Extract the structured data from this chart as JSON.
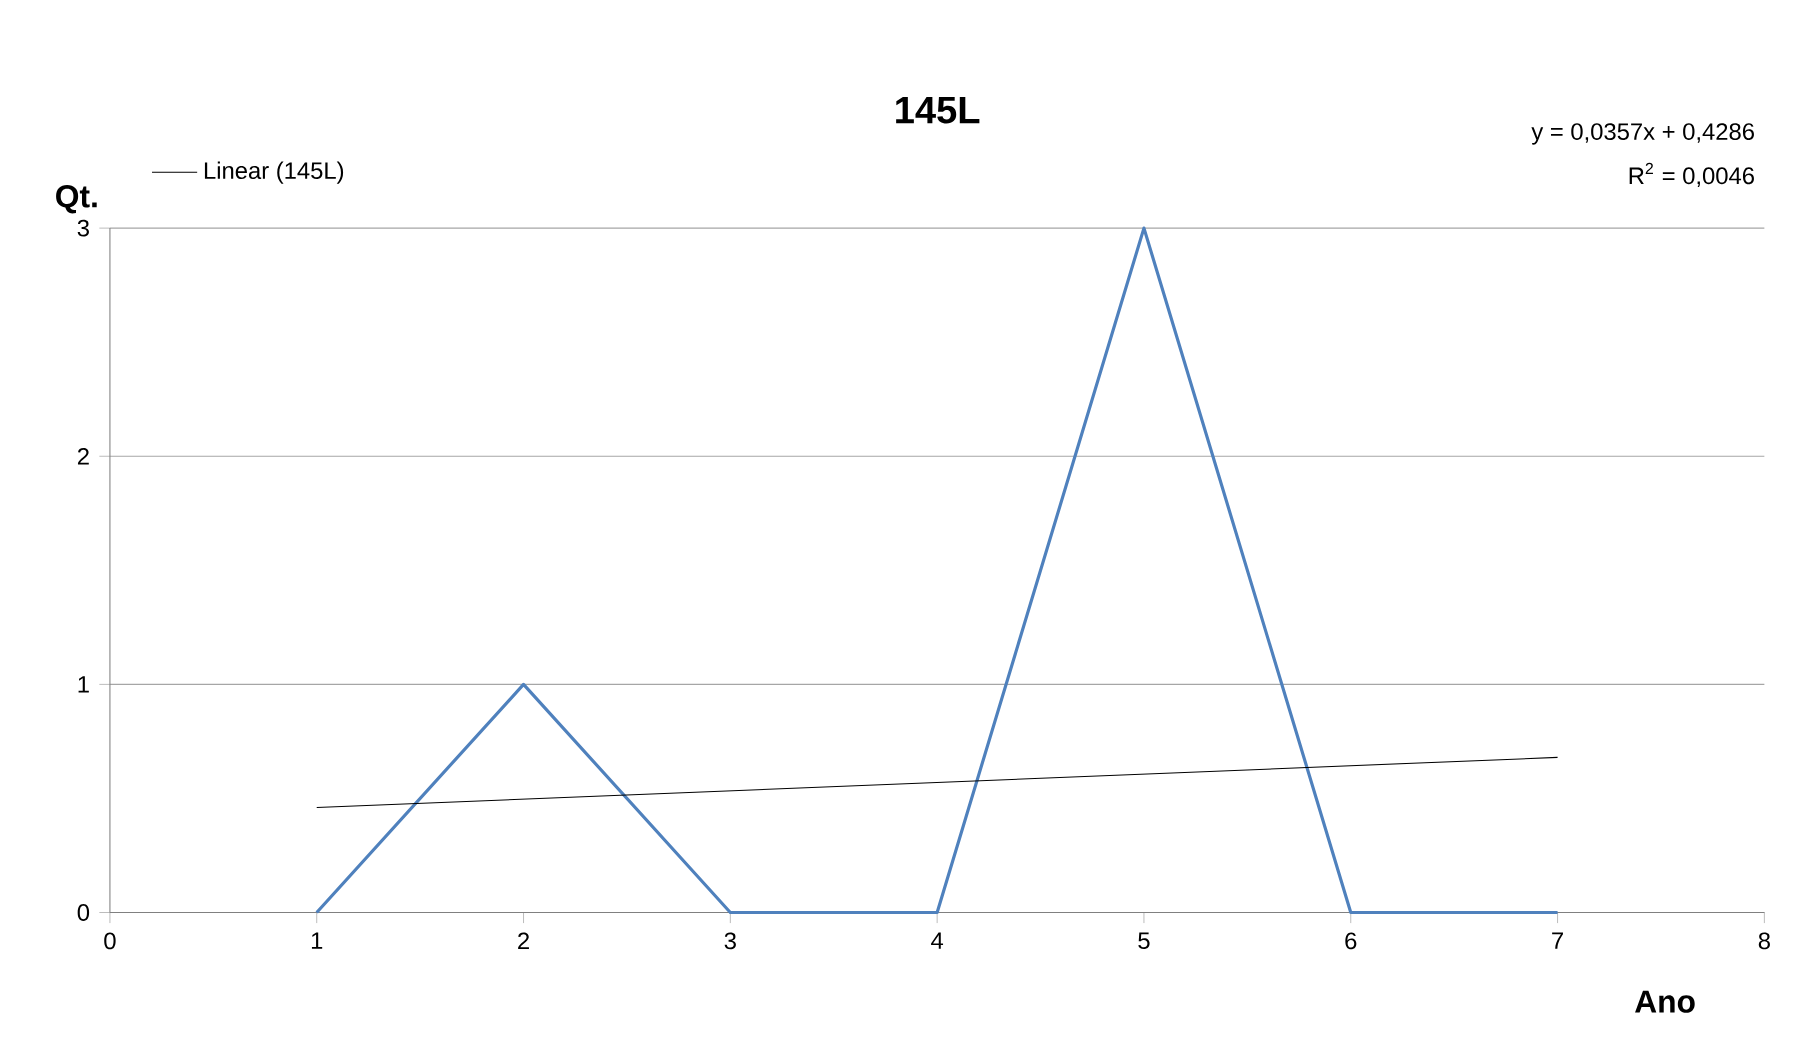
{
  "chart_data": {
    "type": "line",
    "title": "145L",
    "xlabel": "Ano",
    "ylabel": "Qt.",
    "x": [
      1,
      2,
      3,
      4,
      5,
      6,
      7
    ],
    "series": [
      {
        "color": "#4f81bd",
        "values": [
          0,
          1,
          0,
          0,
          3,
          0,
          0
        ]
      },
      {
        "name": "Linear (145L)",
        "color": "#000000",
        "x": [
          1,
          7
        ],
        "values": [
          0.46,
          0.68
        ]
      }
    ],
    "annotations": [
      "y = 0,0357x + 0,4286",
      "R$^{2}$ = 0,0046"
    ],
    "xlim": [
      0,
      8
    ],
    "xticks": [
      0,
      1,
      2,
      3,
      4,
      5,
      6,
      7,
      8
    ],
    "ylim": [
      0,
      3
    ],
    "yticks": [
      0,
      1,
      2,
      3
    ],
    "grid": "y",
    "legend": "top left",
    "marker": "none",
    "line_style": "solid"
  }
}
